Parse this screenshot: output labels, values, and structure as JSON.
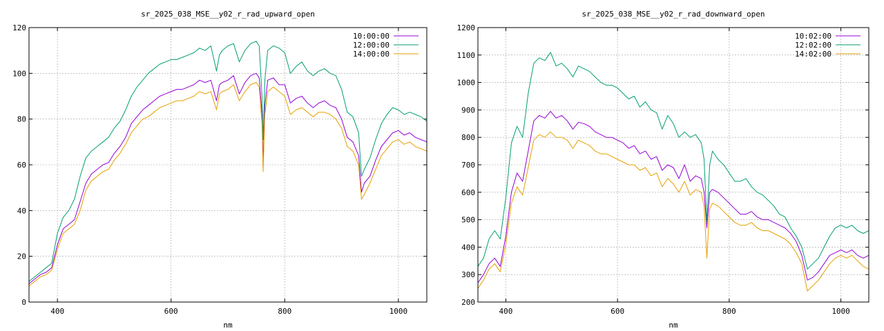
{
  "chart_data": [
    {
      "type": "line",
      "title": "sr_2025_038_MSE__y02_r_rad_upward_open",
      "xlabel": "nm",
      "ylabel": "",
      "xlim": [
        350,
        1050
      ],
      "ylim": [
        0,
        120
      ],
      "xticks": [
        400,
        600,
        800,
        1000
      ],
      "yticks": [
        0,
        20,
        40,
        60,
        80,
        100,
        120
      ],
      "grid": true,
      "legend_position": "top-right",
      "x": [
        350,
        360,
        370,
        380,
        390,
        400,
        410,
        420,
        430,
        440,
        450,
        460,
        470,
        480,
        490,
        500,
        510,
        520,
        530,
        540,
        550,
        560,
        570,
        580,
        590,
        600,
        610,
        620,
        630,
        640,
        650,
        660,
        670,
        680,
        685,
        690,
        700,
        710,
        720,
        730,
        740,
        750,
        755,
        760,
        762,
        765,
        770,
        780,
        790,
        800,
        810,
        820,
        830,
        840,
        850,
        860,
        870,
        880,
        890,
        900,
        910,
        920,
        930,
        935,
        940,
        950,
        960,
        970,
        980,
        990,
        1000,
        1010,
        1020,
        1030,
        1040,
        1050
      ],
      "series": [
        {
          "name": "10:00:00",
          "color": "#9400d3",
          "values": [
            8,
            10,
            12,
            13,
            15,
            25,
            32,
            34,
            36,
            44,
            52,
            56,
            58,
            60,
            61,
            65,
            68,
            72,
            78,
            81,
            84,
            86,
            88,
            90,
            91,
            92,
            93,
            93,
            94,
            95,
            97,
            96,
            97,
            88,
            95,
            96,
            97,
            99,
            91,
            96,
            99,
            100,
            98,
            82,
            61,
            86,
            97,
            98,
            95,
            95,
            87,
            89,
            90,
            87,
            85,
            87,
            88,
            86,
            85,
            80,
            72,
            70,
            64,
            48,
            52,
            55,
            62,
            68,
            71,
            74,
            75,
            73,
            74,
            72,
            71,
            70
          ]
        },
        {
          "name": "12:00:00",
          "color": "#009e73",
          "values": [
            9,
            11,
            13,
            15,
            17,
            30,
            37,
            40,
            45,
            55,
            63,
            66,
            68,
            70,
            72,
            76,
            79,
            84,
            90,
            94,
            97,
            100,
            102,
            104,
            105,
            106,
            106,
            107,
            108,
            109,
            111,
            110,
            112,
            101,
            108,
            110,
            112,
            113,
            105,
            110,
            113,
            114,
            112,
            90,
            71,
            97,
            110,
            112,
            111,
            109,
            100,
            103,
            105,
            101,
            99,
            101,
            102,
            100,
            99,
            93,
            83,
            81,
            74,
            55,
            58,
            63,
            71,
            78,
            82,
            85,
            84,
            82,
            83,
            82,
            81,
            79
          ]
        },
        {
          "name": "14:00:00",
          "color": "#e69f00",
          "values": [
            7,
            9,
            11,
            12,
            14,
            23,
            30,
            32,
            34,
            40,
            49,
            53,
            55,
            57,
            58,
            62,
            65,
            69,
            74,
            77,
            80,
            81,
            83,
            85,
            86,
            87,
            88,
            88,
            89,
            90,
            92,
            91,
            92,
            84,
            91,
            92,
            93,
            95,
            88,
            92,
            95,
            96,
            94,
            78,
            57,
            82,
            92,
            94,
            92,
            90,
            82,
            84,
            85,
            83,
            81,
            83,
            83,
            82,
            80,
            76,
            68,
            66,
            60,
            45,
            47,
            52,
            58,
            64,
            67,
            70,
            71,
            69,
            70,
            68,
            67,
            66
          ]
        }
      ]
    },
    {
      "type": "line",
      "title": "sr_2025_038_MSE__y02_r_rad_downward_open",
      "xlabel": "nm",
      "ylabel": "",
      "xlim": [
        350,
        1050
      ],
      "ylim": [
        200,
        1200
      ],
      "xticks": [
        400,
        600,
        800,
        1000
      ],
      "yticks": [
        200,
        300,
        400,
        500,
        600,
        700,
        800,
        900,
        1000,
        1100,
        1200
      ],
      "grid": true,
      "legend_position": "top-right",
      "x": [
        350,
        360,
        370,
        380,
        390,
        400,
        410,
        420,
        430,
        440,
        450,
        460,
        470,
        480,
        490,
        500,
        510,
        520,
        530,
        540,
        550,
        560,
        570,
        580,
        590,
        600,
        610,
        620,
        630,
        640,
        650,
        660,
        670,
        680,
        690,
        700,
        710,
        720,
        730,
        740,
        750,
        755,
        760,
        765,
        770,
        780,
        790,
        800,
        810,
        820,
        830,
        840,
        850,
        860,
        870,
        880,
        890,
        900,
        910,
        920,
        930,
        940,
        950,
        960,
        970,
        980,
        990,
        1000,
        1010,
        1020,
        1030,
        1040,
        1050
      ],
      "series": [
        {
          "name": "10:02:00",
          "color": "#9400d3",
          "values": [
            270,
            300,
            340,
            360,
            330,
            440,
            600,
            670,
            640,
            750,
            860,
            880,
            870,
            895,
            870,
            880,
            860,
            830,
            855,
            850,
            840,
            820,
            810,
            800,
            800,
            790,
            780,
            760,
            770,
            740,
            750,
            720,
            730,
            680,
            700,
            690,
            650,
            700,
            640,
            660,
            650,
            600,
            470,
            600,
            610,
            600,
            580,
            560,
            540,
            520,
            520,
            530,
            510,
            500,
            500,
            490,
            480,
            470,
            450,
            420,
            370,
            280,
            290,
            310,
            340,
            370,
            380,
            390,
            380,
            390,
            370,
            360,
            370
          ]
        },
        {
          "name": "12:02:00",
          "color": "#009e73",
          "values": [
            330,
            360,
            430,
            460,
            430,
            580,
            780,
            840,
            800,
            960,
            1070,
            1090,
            1080,
            1110,
            1060,
            1070,
            1050,
            1020,
            1060,
            1050,
            1040,
            1020,
            1000,
            990,
            990,
            980,
            960,
            940,
            950,
            910,
            930,
            900,
            890,
            830,
            880,
            850,
            800,
            820,
            800,
            810,
            780,
            720,
            490,
            700,
            750,
            720,
            700,
            670,
            640,
            640,
            650,
            620,
            600,
            590,
            570,
            550,
            520,
            510,
            470,
            440,
            400,
            320,
            340,
            360,
            400,
            440,
            470,
            480,
            470,
            480,
            460,
            450,
            460
          ]
        },
        {
          "name": "14:02:00",
          "color": "#e69f00",
          "values": [
            250,
            280,
            320,
            340,
            310,
            410,
            560,
            620,
            590,
            690,
            790,
            810,
            800,
            820,
            800,
            800,
            790,
            760,
            790,
            780,
            770,
            750,
            740,
            740,
            730,
            720,
            710,
            700,
            700,
            680,
            690,
            660,
            670,
            620,
            650,
            630,
            600,
            640,
            590,
            610,
            600,
            550,
            360,
            540,
            560,
            550,
            530,
            510,
            490,
            480,
            480,
            490,
            470,
            460,
            460,
            450,
            440,
            430,
            410,
            380,
            340,
            240,
            260,
            280,
            310,
            340,
            360,
            370,
            360,
            370,
            350,
            330,
            320
          ]
        }
      ]
    }
  ]
}
